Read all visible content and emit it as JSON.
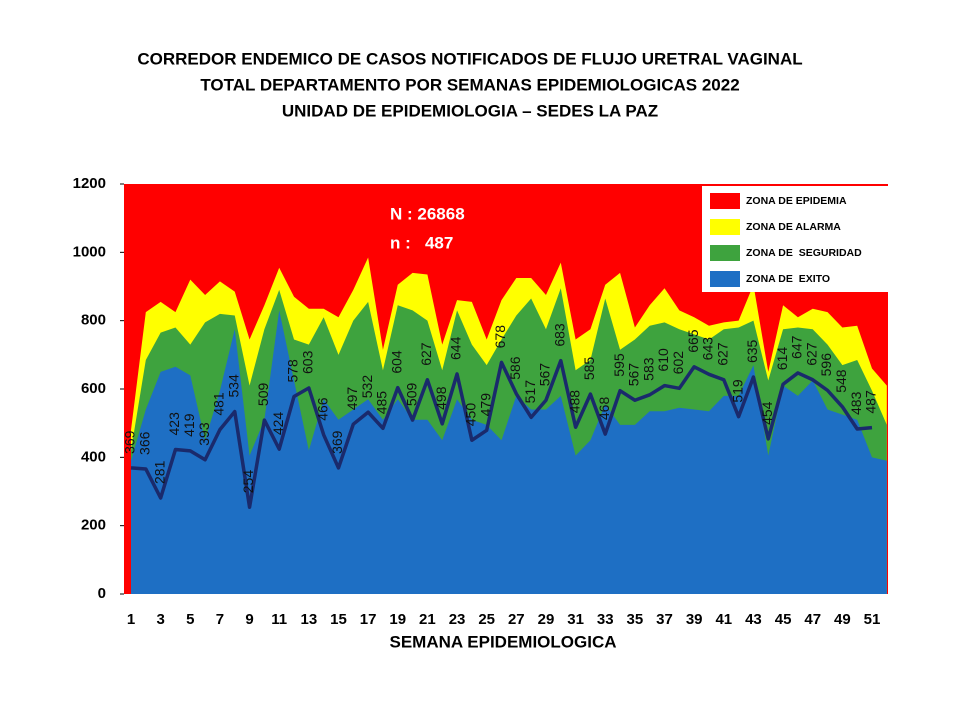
{
  "chart_data": {
    "type": "area",
    "title_lines": [
      "CORREDOR ENDEMICO  DE CASOS NOTIFICADOS  DE FLUJO URETRAL VAGINAL",
      "TOTAL DEPARTAMENTO  POR SEMANAS EPIDEMIOLOGICAS  2022",
      "UNIDAD  DE EPIDEMIOLOGIA  – SEDES LA PAZ"
    ],
    "x_label": "SEMANA EPIDEMIOLOGICA",
    "annotations": [
      "N : 26868",
      "n :   487"
    ],
    "categories": [
      "1",
      null,
      "3",
      null,
      "5",
      null,
      "7",
      null,
      "9",
      null,
      "11",
      null,
      "13",
      null,
      "15",
      null,
      "17",
      null,
      "19",
      null,
      "21",
      null,
      "23",
      null,
      "25",
      null,
      "27",
      null,
      "29",
      null,
      "31",
      null,
      "33",
      null,
      "35",
      null,
      "37",
      null,
      "39",
      null,
      "41",
      null,
      "43",
      null,
      "45",
      null,
      "47",
      null,
      "49",
      null,
      "51",
      null
    ],
    "ylim": [
      0,
      1200
    ],
    "yticks": [
      0,
      200,
      400,
      600,
      800,
      1000,
      1200
    ],
    "legend": "upper right",
    "series": [
      {
        "name": "ZONA DE EPIDEMIA",
        "color": "#ff0000",
        "values": [
          1200,
          1200,
          1200,
          1200,
          1200,
          1200,
          1200,
          1200,
          1200,
          1200,
          1200,
          1200,
          1200,
          1200,
          1200,
          1200,
          1200,
          1200,
          1200,
          1200,
          1200,
          1200,
          1200,
          1200,
          1200,
          1200,
          1200,
          1200,
          1200,
          1200,
          1200,
          1200,
          1200,
          1200,
          1200,
          1200,
          1200,
          1200,
          1200,
          1200,
          1200,
          1200,
          1200,
          1200,
          1200,
          1200,
          1200,
          1200,
          1200,
          1200,
          1200,
          1200
        ]
      },
      {
        "name": "ZONA DE ALARMA",
        "color": "#ffff00",
        "values": [
          480,
          825,
          855,
          825,
          920,
          875,
          915,
          885,
          745,
          845,
          955,
          870,
          835,
          835,
          810,
          890,
          985,
          715,
          905,
          940,
          935,
          730,
          860,
          855,
          745,
          860,
          925,
          925,
          875,
          970,
          745,
          775,
          905,
          940,
          780,
          845,
          895,
          830,
          810,
          785,
          795,
          800,
          905,
          650,
          845,
          810,
          835,
          825,
          780,
          785,
          660,
          610
        ]
      },
      {
        "name": "ZONA DE  SEGURIDAD",
        "color": "#3ea33e",
        "values": [
          420,
          685,
          765,
          780,
          730,
          795,
          820,
          815,
          610,
          775,
          890,
          745,
          730,
          810,
          700,
          800,
          855,
          655,
          845,
          830,
          800,
          655,
          830,
          730,
          670,
          745,
          815,
          865,
          775,
          895,
          655,
          685,
          865,
          715,
          745,
          785,
          795,
          775,
          760,
          745,
          775,
          780,
          800,
          625,
          775,
          780,
          775,
          730,
          670,
          685,
          595,
          495
        ]
      },
      {
        "name": "ZONA DE  EXITO",
        "color": "#1e6fc4",
        "values": [
          390,
          540,
          650,
          665,
          640,
          450,
          595,
          775,
          405,
          510,
          830,
          625,
          420,
          570,
          510,
          540,
          570,
          510,
          570,
          510,
          510,
          450,
          570,
          510,
          495,
          450,
          580,
          540,
          540,
          580,
          405,
          450,
          555,
          495,
          495,
          535,
          535,
          545,
          540,
          535,
          580,
          580,
          670,
          405,
          610,
          580,
          625,
          540,
          525,
          510,
          400,
          390
        ]
      }
    ],
    "line": {
      "color": "#1a2a6c",
      "values": [
        369,
        366,
        281,
        423,
        419,
        393,
        481,
        534,
        254,
        509,
        424,
        578,
        603,
        466,
        369,
        497,
        532,
        485,
        604,
        509,
        627,
        498,
        644,
        450,
        479,
        678,
        586,
        517,
        567,
        683,
        488,
        585,
        468,
        595,
        567,
        583,
        610,
        602,
        665,
        643,
        627,
        519,
        635,
        454,
        614,
        647,
        627,
        596,
        548,
        483,
        487,
        null
      ]
    }
  }
}
